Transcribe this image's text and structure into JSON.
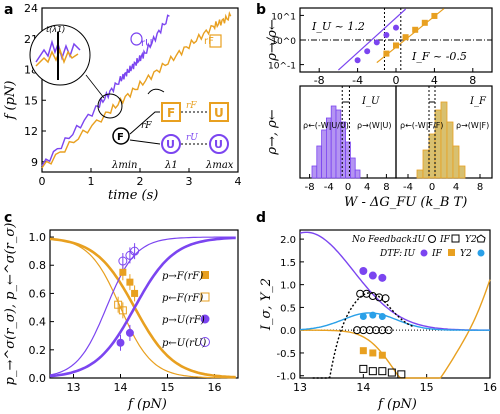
{
  "colors": {
    "purple": "#7b45f0",
    "orange": "#e8a020",
    "blue": "#2aa0e8",
    "black": "#000000",
    "purple_fill": "#b494f2",
    "orange_fill": "#d8c070"
  },
  "chart_data": [
    {
      "panel": "a",
      "type": "line",
      "xlabel": "time (s)",
      "ylabel": "f (pN)",
      "xlim": [
        0,
        4
      ],
      "ylim": [
        8,
        24
      ],
      "xticks": [
        "0",
        "1",
        "2",
        "3",
        "4"
      ],
      "yticks": [
        "9",
        "12",
        "15",
        "18",
        "21",
        "24"
      ],
      "series": [
        {
          "name": "r_U",
          "color": "purple",
          "x": [
            0.0,
            1.1,
            1.6,
            1.85,
            2.1,
            2.6
          ],
          "y": [
            8.6,
            14.2,
            17.0,
            18.3,
            19.6,
            23.2
          ]
        },
        {
          "name": "r_F",
          "color": "orange",
          "x": [
            0.0,
            1.3,
            2.0,
            2.8,
            3.5,
            3.85
          ],
          "y": [
            8.4,
            13.6,
            16.5,
            19.6,
            22.2,
            23.2
          ]
        }
      ],
      "annotations": [
        "t(λ1)",
        "rU",
        "rF",
        "rF",
        "rU",
        "λmin",
        "λ1",
        "λmax",
        "F",
        "U",
        "F",
        "U",
        "U"
      ]
    },
    {
      "panel": "b-top",
      "type": "scatter",
      "ylabel": "ρ→/ρ←",
      "xlim": [
        -10,
        10
      ],
      "yscale": "log",
      "ylim": [
        0.05,
        20
      ],
      "xticks": [
        "-8",
        "-4",
        "0",
        "4",
        "8"
      ],
      "yticks": [
        "10^-1",
        "10^0",
        "10^1"
      ],
      "annotations": [
        "I_U ~ 1.2",
        "I_F ~ -0.5"
      ],
      "series": [
        {
          "name": "U",
          "color": "purple",
          "x": [
            -4.0,
            -3.0,
            -2.0,
            -1.0,
            0.0
          ],
          "y": [
            0.15,
            0.35,
            0.8,
            1.6,
            3.2
          ]
        },
        {
          "name": "F",
          "color": "orange",
          "x": [
            -1.0,
            0.0,
            1.0,
            2.0,
            3.0,
            4.0
          ],
          "y": [
            0.28,
            0.6,
            1.3,
            2.6,
            5.0,
            9.5
          ]
        }
      ]
    },
    {
      "panel": "b-bottom",
      "type": "bar",
      "xlabel": "W - ΔG_FU (k_B T)",
      "ylabel": "ρ→, ρ←",
      "xticks_left": [
        "-8",
        "-4",
        "0",
        "4",
        "8"
      ],
      "xticks_right": [
        "-4",
        "0",
        "4",
        "8"
      ],
      "annotations": [
        "I_U",
        "I_F",
        "ρ←(-W|U/U)",
        "ρ→(W|U)",
        "ρ←(-W|F/F)",
        "ρ→(W|F)"
      ],
      "series": [
        {
          "name": "ρ→(W|U)",
          "color": "purple",
          "bins": [
            -7,
            -6,
            -5,
            -4,
            -3,
            -2,
            -1,
            0,
            1,
            2
          ],
          "values": [
            0.15,
            0.4,
            0.6,
            0.75,
            0.9,
            0.85,
            0.7,
            0.45,
            0.25,
            0.1
          ]
        },
        {
          "name": "ρ→(W|F)",
          "color": "orange",
          "bins": [
            -2,
            -1,
            0,
            1,
            2,
            3,
            4,
            5
          ],
          "values": [
            0.1,
            0.35,
            0.55,
            0.85,
            0.95,
            0.7,
            0.4,
            0.15
          ]
        }
      ]
    },
    {
      "panel": "c",
      "type": "line",
      "xlabel": "f (pN)",
      "ylabel": "p_→^σ(r_σ), p_←^σ(r_σ)",
      "xlim": [
        12.5,
        16.5
      ],
      "ylim": [
        0,
        1.05
      ],
      "xticks": [
        "13",
        "14",
        "15",
        "16"
      ],
      "yticks": [
        "0.0",
        "0.2",
        "0.4",
        "0.6",
        "0.8",
        "1.0"
      ],
      "legend": [
        "p_→^F(r_F)",
        "p_←^F(r_F)",
        "p_→^U(r_F)",
        "p_←^U(r_U)"
      ],
      "series": [
        {
          "name": "p_→^F(r_F)",
          "color": "orange",
          "x": [
            14.05,
            14.2,
            14.3
          ],
          "y": [
            0.75,
            0.68,
            0.6
          ]
        },
        {
          "name": "p_←^F(r_F)",
          "color": "orange",
          "x": [
            13.95,
            14.05
          ],
          "y": [
            0.52,
            0.48
          ]
        },
        {
          "name": "p_→^U(r_F)",
          "color": "purple",
          "x": [
            14.0,
            14.2
          ],
          "y": [
            0.25,
            0.32
          ]
        },
        {
          "name": "p_←^U(r_U)",
          "color": "purple",
          "x": [
            14.05,
            14.2,
            14.3
          ],
          "y": [
            0.83,
            0.87,
            0.9
          ]
        }
      ]
    },
    {
      "panel": "d",
      "type": "line",
      "xlabel": "f (pN)",
      "ylabel": "I_σ, Υ_2",
      "xlim": [
        13,
        16
      ],
      "ylim": [
        -1.05,
        2.2
      ],
      "xticks": [
        "13",
        "14",
        "15",
        "16"
      ],
      "yticks": [
        "-1.0",
        "-0.5",
        "0.0",
        "0.5",
        "1.0",
        "1.5",
        "2.0"
      ],
      "legend_rows": [
        "No Feedback: I_U",
        "I_F",
        "Υ_2",
        "DTF: I_U",
        "I_F",
        "Υ_2"
      ],
      "series": [
        {
          "name": "DTF I_U",
          "color": "purple",
          "x": [
            14.0,
            14.15,
            14.3
          ],
          "y": [
            1.3,
            1.2,
            1.15
          ]
        },
        {
          "name": "DTF I_F",
          "color": "orange",
          "x": [
            14.0,
            14.15,
            14.3
          ],
          "y": [
            -0.45,
            -0.5,
            -0.55
          ]
        },
        {
          "name": "DTF Υ_2",
          "color": "blue",
          "x": [
            14.0,
            14.15,
            14.3
          ],
          "y": [
            0.3,
            0.33,
            0.3
          ]
        },
        {
          "name": "NF I_U",
          "color": "black",
          "x": [
            13.95,
            14.05,
            14.15,
            14.25,
            14.35
          ],
          "y": [
            0.8,
            0.8,
            0.75,
            0.72,
            0.7
          ]
        },
        {
          "name": "NF I_F",
          "color": "black",
          "x": [
            14.0,
            14.15,
            14.3,
            14.45,
            14.6
          ],
          "y": [
            -0.85,
            -0.9,
            -0.9,
            -0.93,
            -0.97
          ]
        },
        {
          "name": "NF Υ_2",
          "color": "black",
          "x": [
            13.9,
            14.0,
            14.1,
            14.2,
            14.3,
            14.4
          ],
          "y": [
            0.0,
            0.0,
            0.0,
            0.0,
            0.0,
            0.0
          ]
        }
      ]
    }
  ],
  "labels": {
    "a": "a",
    "b": "b",
    "c": "c",
    "d": "d",
    "a_xlabel": "time (s)",
    "a_ylabel": "f (pN)",
    "b_top_ylabel": "ρ→/ρ←",
    "b_bot_ylabel": "ρ→, ρ←",
    "b_xlabel": "W - ΔG_FU (k_B T)",
    "c_xlabel": "f (pN)",
    "c_ylabel": "p_→^σ(r_σ), p_←^σ(r_σ)",
    "d_xlabel": "f (pN)",
    "d_ylabel": "I_σ, Υ_2",
    "iu": "I_U ~ 1.2",
    "if": "I_F ~ -0.5",
    "iu_short": "I_U",
    "if_short": "I_F",
    "rho_u_back": "ρ←(-W|U/U)",
    "rho_u_fwd": "ρ→(W|U)",
    "rho_f_back": "ρ←(-W|F/F)",
    "rho_f_fwd": "ρ→(W|F)",
    "t_lambda": "t(λ1)",
    "rU": "rU",
    "rF": "rF",
    "lmin": "λmin",
    "l1": "λ1",
    "lmax": "λmax",
    "F": "F",
    "U": "U",
    "legc1": "p→F(rF)",
    "legc2": "p←F(rF)",
    "legc3": "p→U(rF)",
    "legc4": "p←U(rU)",
    "nf": "No Feedback:",
    "dtf": "DTF:",
    "iu_leg": "IU",
    "if_leg": "IF",
    "y2_leg": "Υ2"
  }
}
